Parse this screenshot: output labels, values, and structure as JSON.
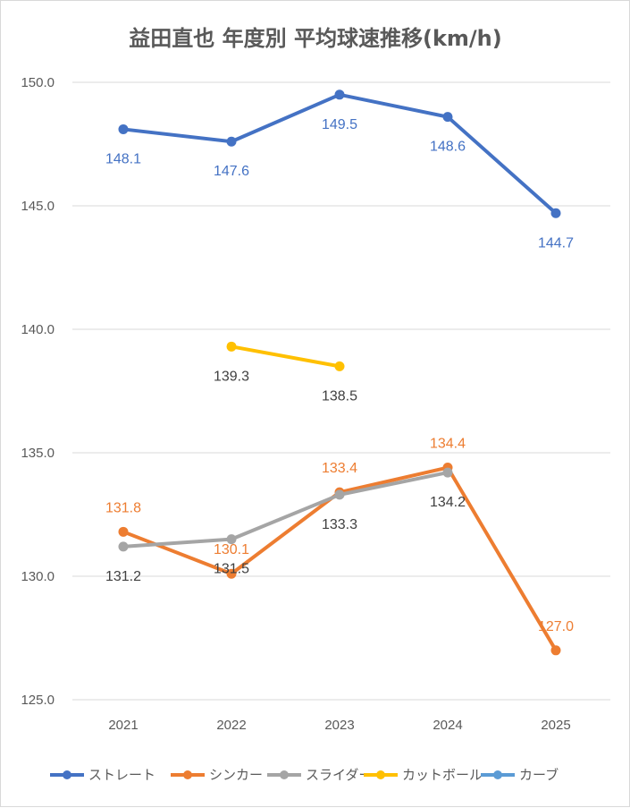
{
  "chart_data": {
    "type": "line",
    "title": "益田直也 年度別 平均球速推移(km/h)",
    "categories": [
      "2021",
      "2022",
      "2023",
      "2024",
      "2025"
    ],
    "ylim": [
      125.0,
      150.0
    ],
    "yticks": [
      "125.0",
      "130.0",
      "135.0",
      "140.0",
      "145.0",
      "150.0"
    ],
    "grid": true,
    "legend_position": "bottom",
    "series": [
      {
        "name": "ストレート",
        "color": "#4472C4",
        "values": [
          148.1,
          147.6,
          149.5,
          148.6,
          144.7
        ],
        "labels": [
          "148.1",
          "147.6",
          "149.5",
          "148.6",
          "144.7"
        ],
        "label_color": "#4472C4",
        "label_pos": [
          "below",
          "below",
          "below",
          "below",
          "below"
        ]
      },
      {
        "name": "シンカー",
        "color": "#ED7D31",
        "values": [
          131.8,
          130.1,
          133.4,
          134.4,
          127.0
        ],
        "labels": [
          "131.8",
          "130.1",
          "133.4",
          "134.4",
          "127.0"
        ],
        "label_color": "#ED7D31",
        "label_pos": [
          "above",
          "above",
          "above",
          "above",
          "above"
        ]
      },
      {
        "name": "スライダー",
        "color": "#A5A5A5",
        "values": [
          131.2,
          131.5,
          133.3,
          134.2,
          null
        ],
        "labels": [
          "131.2",
          "131.5",
          "133.3",
          "134.2",
          ""
        ],
        "label_color": "#404040",
        "label_pos": [
          "below",
          "below",
          "below",
          "below",
          "below"
        ]
      },
      {
        "name": "カットボール",
        "color": "#FFC000",
        "values": [
          null,
          139.3,
          138.5,
          null,
          null
        ],
        "labels": [
          "",
          "139.3",
          "138.5",
          "",
          ""
        ],
        "label_color": "#404040",
        "label_pos": [
          "below",
          "below",
          "below",
          "below",
          "below"
        ]
      },
      {
        "name": "カーブ",
        "color": "#5B9BD5",
        "values": [
          null,
          null,
          null,
          null,
          null
        ],
        "labels": [
          "",
          "",
          "",
          "",
          ""
        ],
        "label_color": "#5B9BD5",
        "label_pos": [
          "below",
          "below",
          "below",
          "below",
          "below"
        ]
      }
    ]
  }
}
